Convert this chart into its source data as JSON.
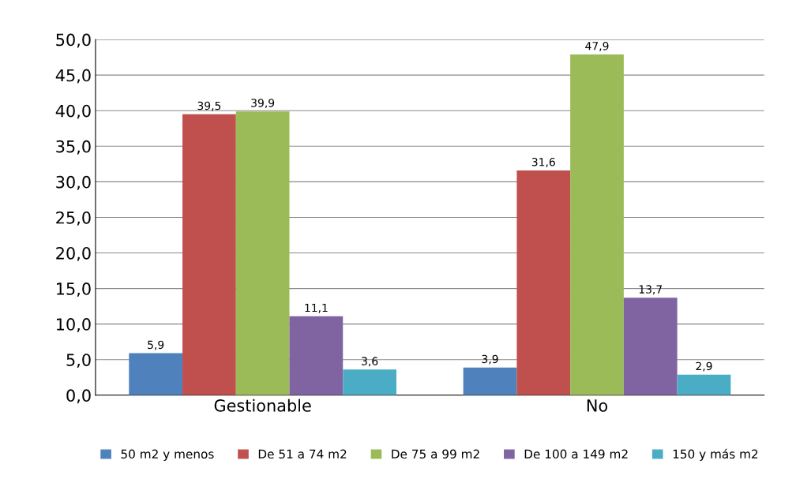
{
  "chart_data": {
    "type": "bar",
    "categories": [
      "Gestionable",
      "No"
    ],
    "series": [
      {
        "name": "50 m2 y menos",
        "color": "#4f81bd",
        "values": [
          5.9,
          3.9
        ],
        "value_labels": [
          "5,9",
          "3,9"
        ]
      },
      {
        "name": "De 51 a 74 m2",
        "color": "#c0504d",
        "values": [
          39.5,
          31.6
        ],
        "value_labels": [
          "39,5",
          "31,6"
        ]
      },
      {
        "name": "De 75 a 99 m2",
        "color": "#9bbb59",
        "values": [
          39.9,
          47.9
        ],
        "value_labels": [
          "39,9",
          "47,9"
        ]
      },
      {
        "name": "De 100 a 149 m2",
        "color": "#8064a2",
        "values": [
          11.1,
          13.7
        ],
        "value_labels": [
          "11,1",
          "13,7"
        ]
      },
      {
        "name": "150 y más m2",
        "color": "#4bacc6",
        "values": [
          3.6,
          2.9
        ],
        "value_labels": [
          "3,6",
          "2,9"
        ]
      }
    ],
    "ylim": [
      0,
      50
    ],
    "yticks": [
      {
        "value": 0,
        "label": "0,0"
      },
      {
        "value": 5,
        "label": "5,0"
      },
      {
        "value": 10,
        "label": "10,0"
      },
      {
        "value": 15,
        "label": "15,0"
      },
      {
        "value": 20,
        "label": "20,0"
      },
      {
        "value": 25,
        "label": "25,0"
      },
      {
        "value": 30,
        "label": "30,0"
      },
      {
        "value": 35,
        "label": "35,0"
      },
      {
        "value": 40,
        "label": "40,0"
      },
      {
        "value": 45,
        "label": "45,0"
      },
      {
        "value": 50,
        "label": "50,0"
      }
    ],
    "grid": "y",
    "legend": "bottom"
  }
}
